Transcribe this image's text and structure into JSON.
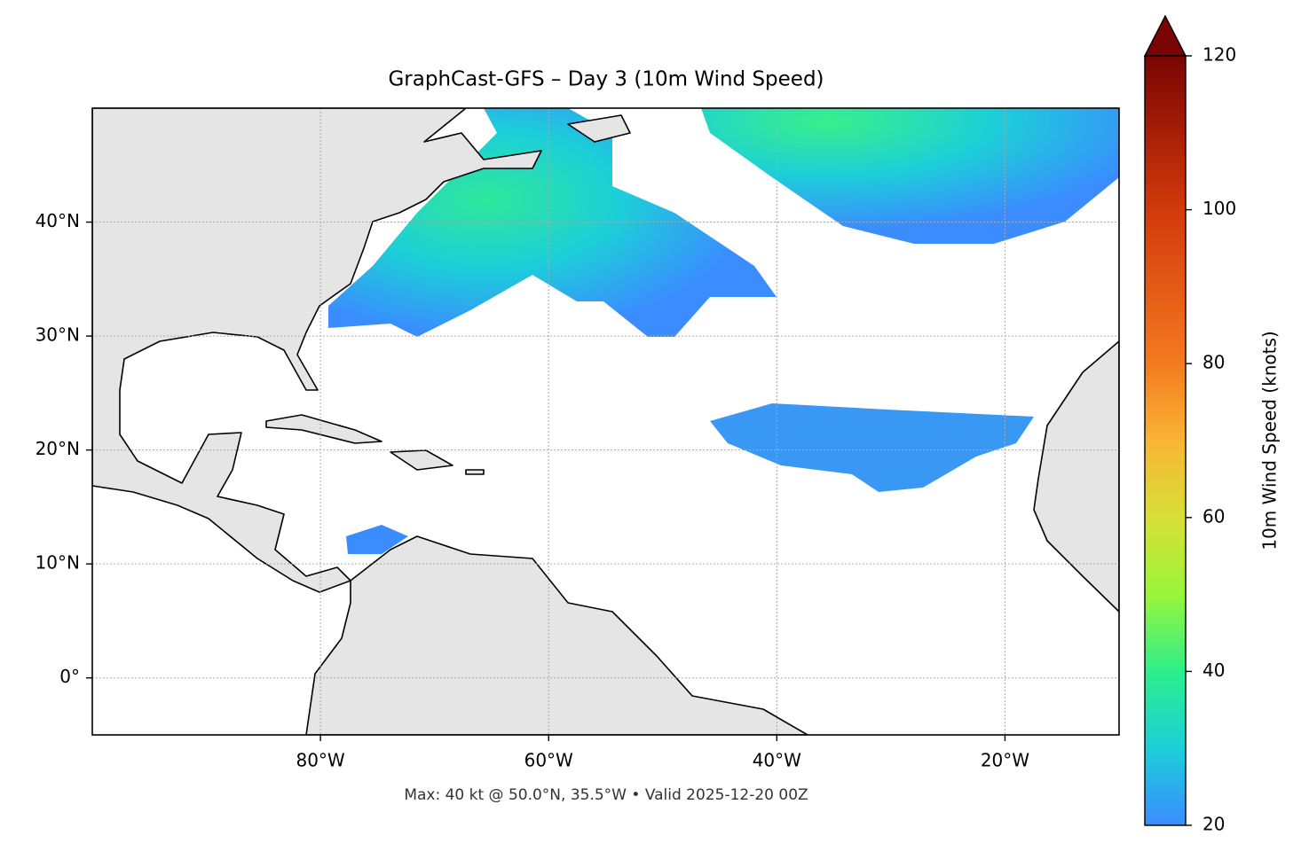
{
  "chart_data": {
    "type": "map",
    "title": "GraphCast-GFS – Day 3 (10m Wind Speed)",
    "note": "Max: 40 kt @ 50.0°N, 35.5°W • Valid 2025-12-20 00Z",
    "xlim": [
      -100,
      -10
    ],
    "ylim": [
      -5,
      50
    ],
    "xticks": [
      {
        "value": -80,
        "label": "80°W"
      },
      {
        "value": -60,
        "label": "60°W"
      },
      {
        "value": -40,
        "label": "40°W"
      },
      {
        "value": -20,
        "label": "20°W"
      }
    ],
    "yticks": [
      {
        "value": 0,
        "label": "0°"
      },
      {
        "value": 10,
        "label": "10°N"
      },
      {
        "value": 20,
        "label": "20°N"
      },
      {
        "value": 30,
        "label": "30°N"
      },
      {
        "value": 40,
        "label": "40°N"
      }
    ],
    "grid": true,
    "colorbar": {
      "label": "10m Wind Speed (knots)",
      "lim": [
        20,
        120
      ],
      "ticks": [
        20,
        40,
        60,
        80,
        100,
        120
      ]
    }
  }
}
